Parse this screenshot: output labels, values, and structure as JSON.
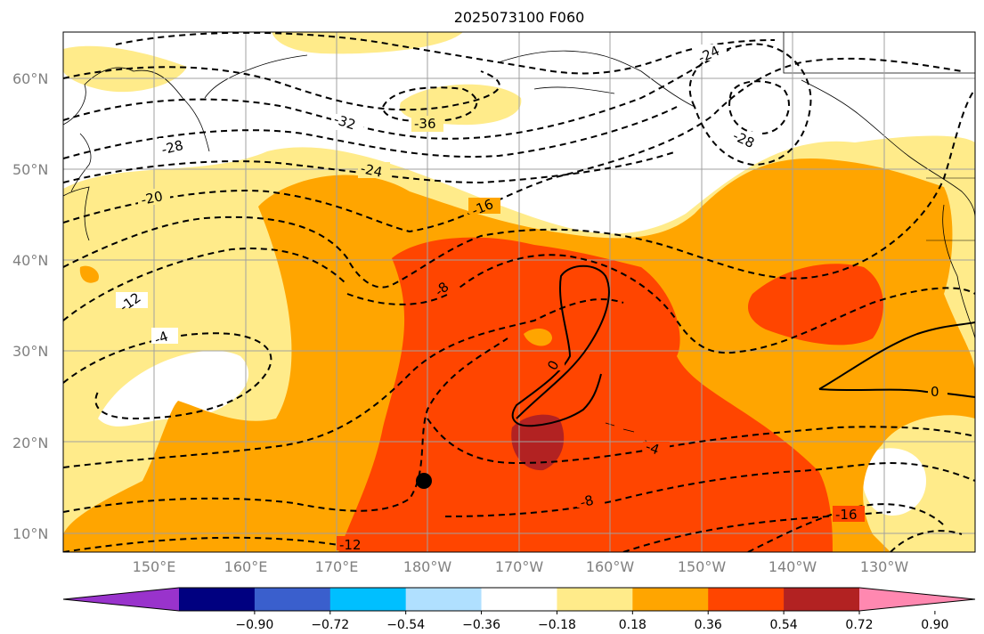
{
  "title": "2025073100 F060",
  "map": {
    "lat_ticks": [
      "10°N",
      "20°N",
      "30°N",
      "40°N",
      "50°N",
      "60°N"
    ],
    "lon_ticks": [
      "150°E",
      "160°E",
      "170°E",
      "180°W",
      "170°W",
      "160°W",
      "150°W",
      "140°W",
      "130°W"
    ],
    "contour_labels": [
      "-36",
      "-32",
      "-28",
      "-28",
      "-24",
      "-24",
      "-20",
      "-16",
      "-16",
      "-12",
      "-12",
      "-8",
      "-8",
      "-4",
      "-4",
      "0",
      "0"
    ],
    "colors": {
      "level_018": "#ffeb8a",
      "level_036": "#ffa500",
      "level_054": "#ff4500",
      "level_072": "#b22222",
      "land_line": "#000000",
      "grid": "#a0a0a0",
      "marker": "#000000"
    },
    "marker": {
      "lat": 15.8,
      "lon": -179.5
    }
  },
  "colorbar": {
    "ticks": [
      "−0.90",
      "−0.72",
      "−0.54",
      "−0.36",
      "−0.18",
      "0.18",
      "0.36",
      "0.54",
      "0.72",
      "0.90"
    ],
    "colors": [
      "#9933cc",
      "#000080",
      "#3a5fcd",
      "#00bfff",
      "#b0e0ff",
      "#ffffff",
      "#ffeb8a",
      "#ffa500",
      "#ff4500",
      "#b22222",
      "#ff88b0"
    ]
  }
}
